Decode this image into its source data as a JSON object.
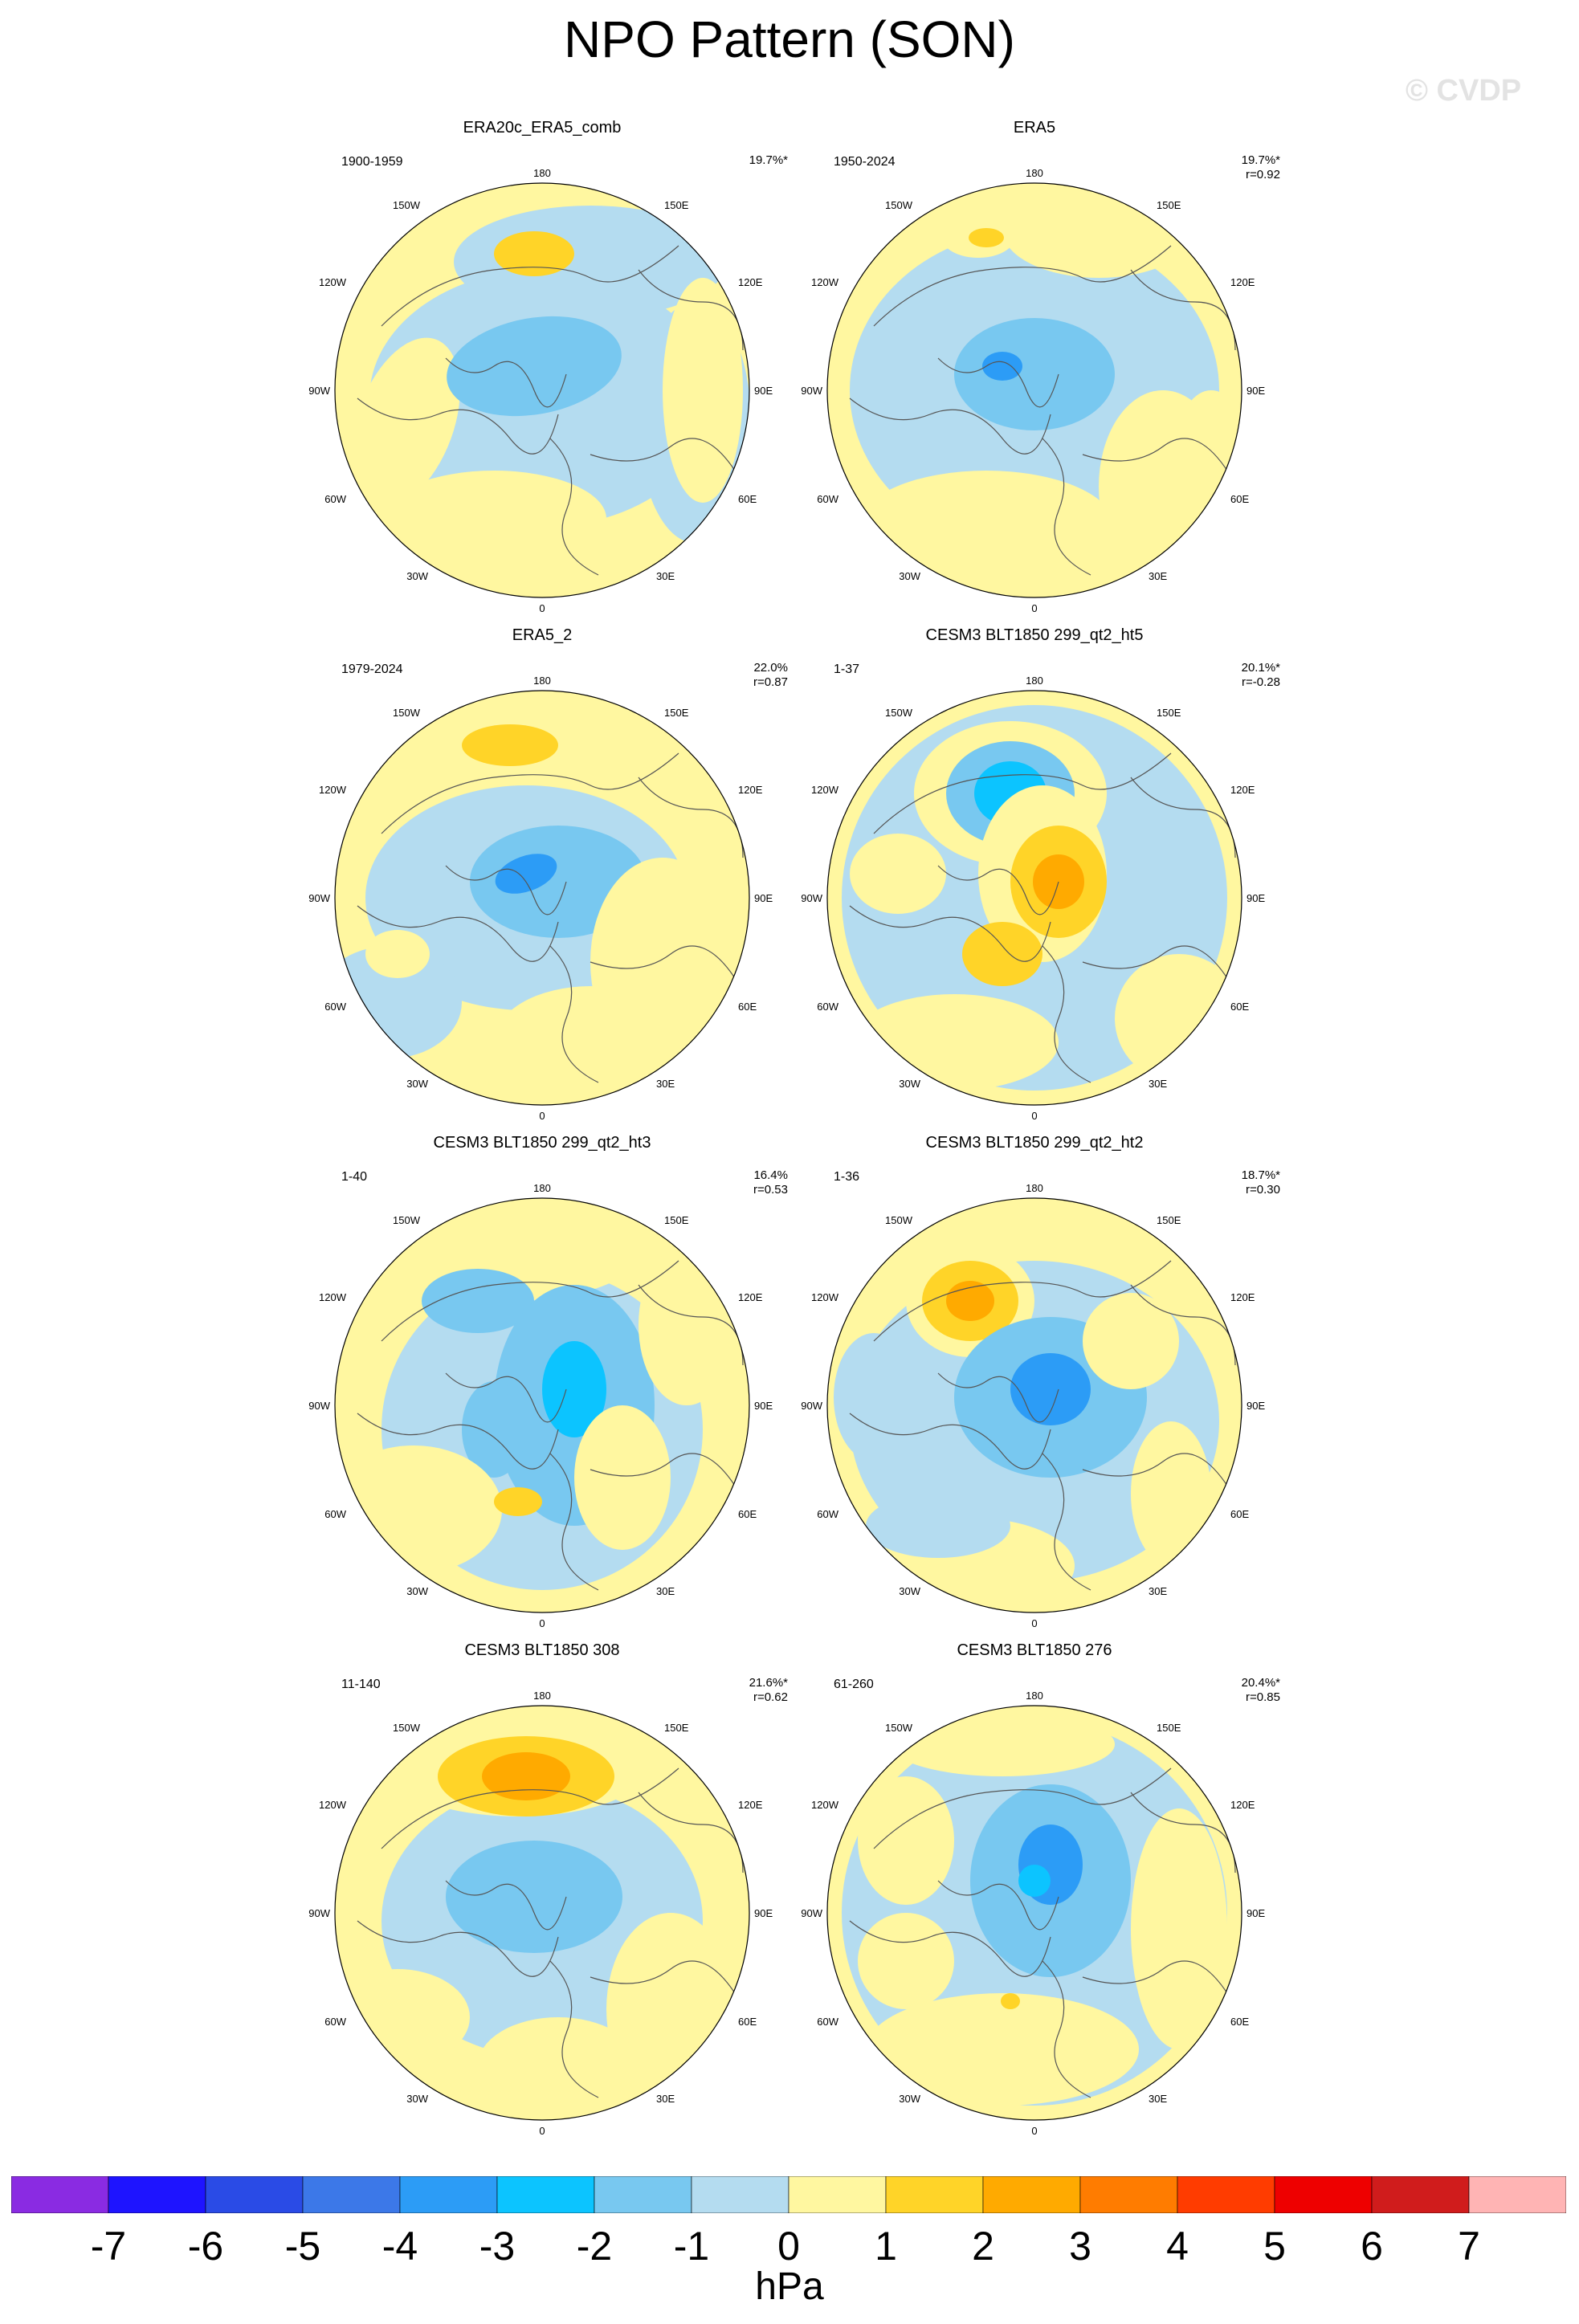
{
  "title": "NPO Pattern (SON)",
  "watermark": "© CVDP",
  "longitude_labels": {
    "top": "180",
    "top_left": "150W",
    "top_right": "150E",
    "upper_left": "120W",
    "upper_right": "120E",
    "left": "90W",
    "right": "90E",
    "lower_left": "60W",
    "lower_right": "60E",
    "bottom_left": "30W",
    "bottom_right": "30E",
    "bottom": "0"
  },
  "panels": [
    {
      "title": "ERA20c_ERA5_comb",
      "period": "1900-1959",
      "pct": "19.7%*",
      "r": ""
    },
    {
      "title": "ERA5",
      "period": "1950-2024",
      "pct": "19.7%*",
      "r": "r=0.92"
    },
    {
      "title": "ERA5_2",
      "period": "1979-2024",
      "pct": "22.0%",
      "r": "r=0.87"
    },
    {
      "title": "CESM3 BLT1850 299_qt2_ht5",
      "period": "1-37",
      "pct": "20.1%*",
      "r": "r=-0.28"
    },
    {
      "title": "CESM3 BLT1850 299_qt2_ht3",
      "period": "1-40",
      "pct": "16.4%",
      "r": "r=0.53"
    },
    {
      "title": "CESM3 BLT1850 299_qt2_ht2",
      "period": "1-36",
      "pct": "18.7%*",
      "r": "r=0.30"
    },
    {
      "title": "CESM3 BLT1850 308",
      "period": "11-140",
      "pct": "21.6%*",
      "r": "r=0.62"
    },
    {
      "title": "CESM3 BLT1850 276",
      "period": "61-260",
      "pct": "20.4%*",
      "r": "r=0.85"
    }
  ],
  "colorbar": {
    "colors": [
      "#8a2be2",
      "#1e14ff",
      "#2a4be6",
      "#3c78e8",
      "#2c9cf6",
      "#0cc4ff",
      "#78c8f0",
      "#b4dcf0",
      "#fff7a0",
      "#ffd428",
      "#ffaa00",
      "#ff7c00",
      "#ff3c00",
      "#ee0000",
      "#d01c1c",
      "#ffb4b4"
    ],
    "labels": [
      "-7",
      "-6",
      "-5",
      "-4",
      "-3",
      "-2",
      "-1",
      "0",
      "1",
      "2",
      "3",
      "4",
      "5",
      "6",
      "7"
    ],
    "unit": "hPa"
  }
}
